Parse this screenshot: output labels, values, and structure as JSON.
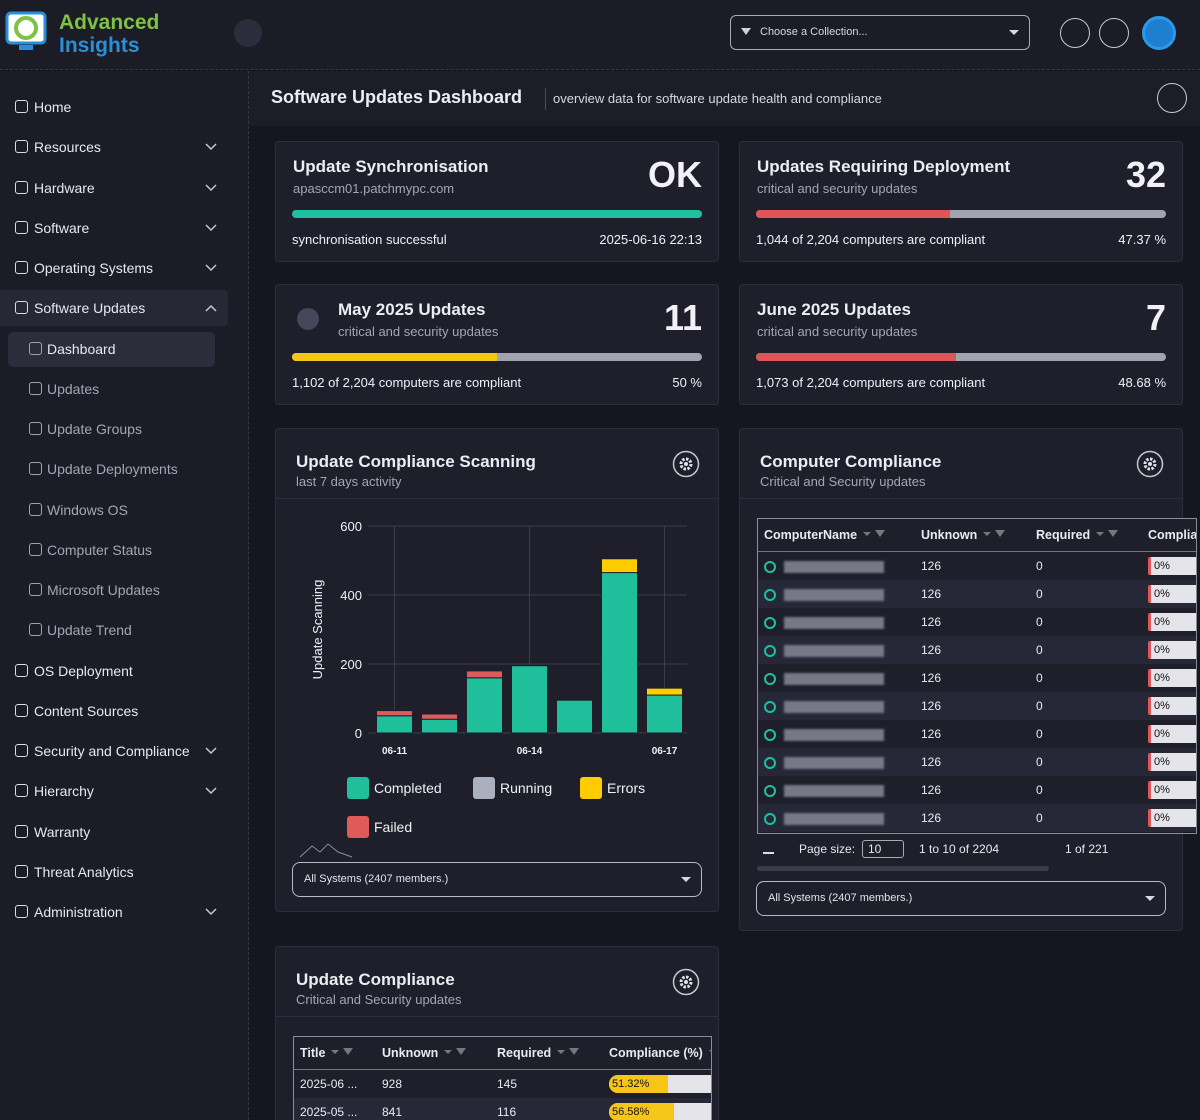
{
  "header": {
    "brand_line1": "Advanced",
    "brand_line2": "Insights",
    "collection_placeholder": "Choose a Collection..."
  },
  "menu": [
    {
      "label": "Home"
    },
    {
      "label": "Resources",
      "expandable": true
    },
    {
      "label": "Hardware",
      "expandable": true
    },
    {
      "label": "Software",
      "expandable": true
    },
    {
      "label": "Operating Systems",
      "expandable": true
    },
    {
      "label": "Software Updates",
      "expandable": true,
      "expanded": true,
      "children": [
        {
          "label": "Dashboard",
          "active": true
        },
        {
          "label": "Updates"
        },
        {
          "label": "Update Groups"
        },
        {
          "label": "Update Deployments"
        },
        {
          "label": "Windows OS"
        },
        {
          "label": "Computer Status"
        },
        {
          "label": "Microsoft Updates"
        },
        {
          "label": "Update Trend"
        }
      ]
    },
    {
      "label": "OS Deployment"
    },
    {
      "label": "Content Sources"
    },
    {
      "label": "Security and Compliance",
      "expandable": true
    },
    {
      "label": "Hierarchy",
      "expandable": true
    },
    {
      "label": "Warranty"
    },
    {
      "label": "Threat Analytics"
    },
    {
      "label": "Administration",
      "expandable": true
    }
  ],
  "page": {
    "title": "Software Updates Dashboard",
    "subtitle": "overview data for software update health and compliance"
  },
  "cards": [
    {
      "title": "Update Synchronisation",
      "subtitle": "apasccm01.patchmypc.com",
      "value": "OK",
      "footer_left": "synchronisation successful",
      "footer_right": "2025-06-16 22:13",
      "color": "#1fc0a0"
    },
    {
      "title": "Updates Requiring Deployment",
      "subtitle": "critical and security updates",
      "value": 32,
      "footer_left": "1,044 of 2,204 computers are compliant",
      "percent": {
        "value": 47.37,
        "label": "47.37 %"
      },
      "color": "#e05557"
    },
    {
      "title": "May 2025 Updates",
      "subtitle": "critical and security updates",
      "value": 11,
      "footer_left": "1,102 of 2,204 computers are compliant",
      "percent": {
        "value": 50,
        "label": "50 %"
      },
      "color": "#f5c518"
    },
    {
      "title": "June 2025 Updates",
      "subtitle": "critical and security updates",
      "value": 7,
      "footer_left": "1,073 of 2,204 computers are compliant",
      "percent": {
        "value": 48.68,
        "label": "48.68 %"
      },
      "color": "#e05557"
    }
  ],
  "scanning": {
    "title": "Update Compliance Scanning",
    "subtitle": "last 7 days activity",
    "filter": "All Systems (2407 members.)"
  },
  "chart_data": {
    "type": "stacked_bar",
    "y_label": "Update Scanning",
    "categories": [
      "06-11",
      null,
      null,
      "06-14",
      null,
      null,
      "06-17"
    ],
    "series": [
      {
        "name": "Completed",
        "color": "#1fbf9c",
        "values": [
          50,
          40,
          160,
          195,
          95,
          465,
          110
        ]
      },
      {
        "name": "Running",
        "color": "#aab0bd",
        "values": [
          0,
          0,
          0,
          0,
          0,
          0,
          0
        ]
      },
      {
        "name": "Errors",
        "color": "#ffcc00",
        "values": [
          0,
          0,
          0,
          0,
          0,
          40,
          20
        ]
      },
      {
        "name": "Failed",
        "color": "#e05a5a",
        "values": [
          15,
          15,
          20,
          0,
          0,
          0,
          0
        ]
      }
    ],
    "ylim": [
      0,
      600
    ],
    "yticks": [
      0,
      200,
      400,
      600
    ],
    "grid": true
  },
  "computer_compliance": {
    "title": "Computer Compliance",
    "subtitle": "Critical and Security updates",
    "columns": [
      "ComputerName",
      "Unknown",
      "Required",
      "Compliance"
    ],
    "rows": [
      {
        "unknown": 126,
        "required": 0,
        "compliance": {
          "value": 0,
          "label": "0%"
        }
      },
      {
        "unknown": 126,
        "required": 0,
        "compliance": {
          "value": 0,
          "label": "0%"
        }
      },
      {
        "unknown": 126,
        "required": 0,
        "compliance": {
          "value": 0,
          "label": "0%"
        }
      },
      {
        "unknown": 126,
        "required": 0,
        "compliance": {
          "value": 0,
          "label": "0%"
        }
      },
      {
        "unknown": 126,
        "required": 0,
        "compliance": {
          "value": 0,
          "label": "0%"
        }
      },
      {
        "unknown": 126,
        "required": 0,
        "compliance": {
          "value": 0,
          "label": "0%"
        }
      },
      {
        "unknown": 126,
        "required": 0,
        "compliance": {
          "value": 0,
          "label": "0%"
        }
      },
      {
        "unknown": 126,
        "required": 0,
        "compliance": {
          "value": 0,
          "label": "0%"
        }
      },
      {
        "unknown": 126,
        "required": 0,
        "compliance": {
          "value": 0,
          "label": "0%"
        }
      },
      {
        "unknown": 126,
        "required": 0,
        "compliance": {
          "value": 0,
          "label": "0%"
        }
      }
    ],
    "pager": {
      "page_size_label": "Page size:",
      "page_size": 10,
      "range": "1 to 10 of 2204",
      "page": "1 of 221"
    },
    "filter": "All Systems (2407 members.)"
  },
  "update_compliance": {
    "title": "Update Compliance",
    "subtitle": "Critical and Security updates",
    "columns": [
      "Title",
      "Unknown",
      "Required",
      "Compliance (%)"
    ],
    "rows": [
      {
        "title": "2025-06 ...",
        "unknown": 928,
        "required": 145,
        "compliance": {
          "value": 51.32,
          "label": "51.32%"
        }
      },
      {
        "title": "2025-05 ...",
        "unknown": 841,
        "required": 116,
        "compliance": {
          "value": 56.58,
          "label": "56.58%"
        }
      }
    ]
  }
}
